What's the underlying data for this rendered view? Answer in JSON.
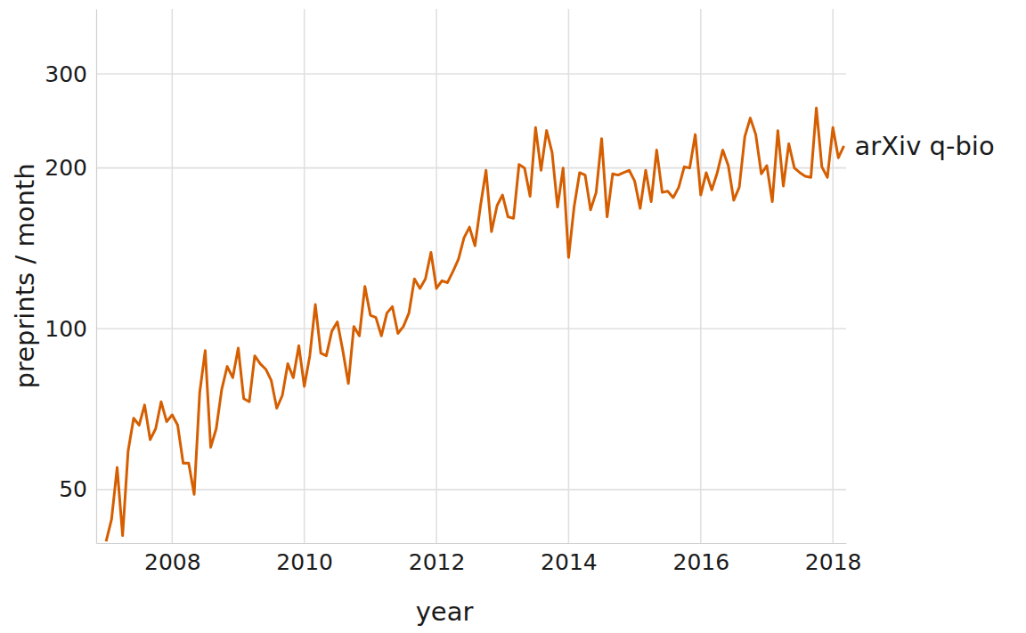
{
  "chart_data": {
    "type": "line",
    "x_label": "year",
    "y_label": "preprints / month",
    "log": "y",
    "grid": true,
    "xlim": [
      2006.85,
      2018.2
    ],
    "ylim": [
      39.7,
      397
    ],
    "xticks": [
      2008,
      2010,
      2012,
      2014,
      2016,
      2018
    ],
    "yticks": [
      50,
      100,
      200,
      300
    ],
    "x": [
      2007,
      2007.083,
      2007.167,
      2007.25,
      2007.333,
      2007.417,
      2007.5,
      2007.583,
      2007.667,
      2007.75,
      2007.833,
      2007.917,
      2008,
      2008.083,
      2008.167,
      2008.25,
      2008.333,
      2008.417,
      2008.5,
      2008.583,
      2008.667,
      2008.75,
      2008.833,
      2008.917,
      2009,
      2009.083,
      2009.167,
      2009.25,
      2009.333,
      2009.417,
      2009.5,
      2009.583,
      2009.667,
      2009.75,
      2009.833,
      2009.917,
      2010,
      2010.083,
      2010.167,
      2010.25,
      2010.333,
      2010.417,
      2010.5,
      2010.583,
      2010.667,
      2010.75,
      2010.833,
      2010.917,
      2011,
      2011.083,
      2011.167,
      2011.25,
      2011.333,
      2011.417,
      2011.5,
      2011.583,
      2011.667,
      2011.75,
      2011.833,
      2011.917,
      2012,
      2012.083,
      2012.167,
      2012.25,
      2012.333,
      2012.417,
      2012.5,
      2012.583,
      2012.667,
      2012.75,
      2012.833,
      2012.917,
      2013,
      2013.083,
      2013.167,
      2013.25,
      2013.333,
      2013.417,
      2013.5,
      2013.583,
      2013.667,
      2013.75,
      2013.833,
      2013.917,
      2014,
      2014.083,
      2014.167,
      2014.25,
      2014.333,
      2014.417,
      2014.5,
      2014.583,
      2014.667,
      2014.75,
      2014.833,
      2014.917,
      2015,
      2015.083,
      2015.167,
      2015.25,
      2015.333,
      2015.417,
      2015.5,
      2015.583,
      2015.667,
      2015.75,
      2015.833,
      2015.917,
      2016,
      2016.083,
      2016.167,
      2016.25,
      2016.333,
      2016.417,
      2016.5,
      2016.583,
      2016.667,
      2016.75,
      2016.833,
      2016.917,
      2017,
      2017.083,
      2017.167,
      2017.25,
      2017.333,
      2017.417,
      2017.5,
      2017.583,
      2017.667,
      2017.75,
      2017.833,
      2017.917,
      2018,
      2018.083,
      2018.167
    ],
    "series": [
      {
        "name": "arXiv q-bio",
        "color": "#D55E00",
        "values": [
          40,
          44,
          55,
          41,
          59,
          68,
          66,
          72,
          62,
          65,
          73,
          67,
          69,
          66,
          56,
          56,
          49,
          76,
          91,
          60,
          65,
          77,
          85,
          81,
          92,
          74,
          73,
          89,
          86,
          84,
          80,
          71,
          75,
          86,
          81,
          93,
          78,
          89,
          111,
          90,
          89,
          99,
          103,
          91,
          79,
          101,
          97,
          120,
          106,
          105,
          97,
          107,
          110,
          98,
          101,
          107,
          124,
          119,
          124,
          139,
          119,
          123,
          122,
          128,
          135,
          148,
          155,
          143,
          170,
          198,
          152,
          170,
          178,
          162,
          161,
          203,
          200,
          177,
          238,
          198,
          235,
          214,
          169,
          200,
          136,
          169,
          196,
          194,
          167,
          180,
          227,
          162,
          195,
          194,
          196,
          198,
          189,
          168,
          198,
          173,
          216,
          180,
          181,
          176,
          184,
          201,
          200,
          231,
          178,
          196,
          182,
          196,
          216,
          202,
          174,
          184,
          229,
          248,
          231,
          195,
          202,
          173,
          235,
          185,
          222,
          200,
          196,
          193,
          192,
          259,
          201,
          192,
          238,
          209,
          220
        ]
      }
    ]
  }
}
